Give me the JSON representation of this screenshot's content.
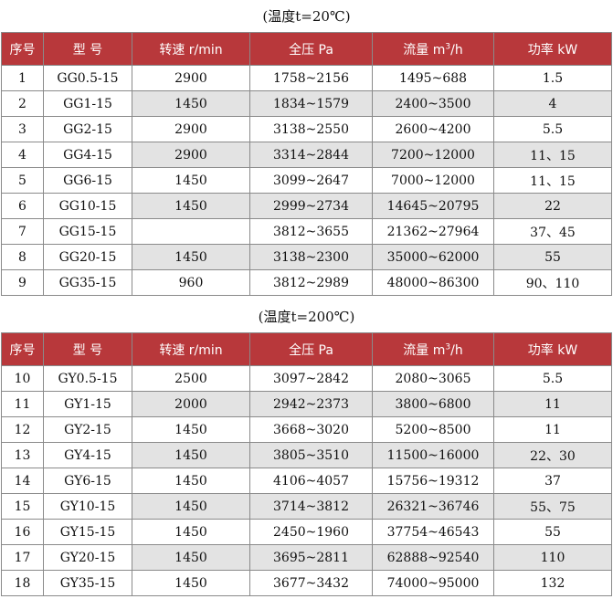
{
  "table1": {
    "title": "(温度t=20℃)",
    "headers": [
      "序号",
      "型 号",
      "转速 r/min",
      "全压 Pa",
      "流量 m",
      "/h",
      "功率 kW"
    ],
    "rows": [
      [
        "1",
        "GG0.5-15",
        "2900",
        "1758~2156",
        "1495~688",
        "1.5"
      ],
      [
        "2",
        "GG1-15",
        "1450",
        "1834~1579",
        "2400~3500",
        "4"
      ],
      [
        "3",
        "GG2-15",
        "2900",
        "3138~2550",
        "2600~4200",
        "5.5"
      ],
      [
        "4",
        "GG4-15",
        "2900",
        "3314~2844",
        "7200~12000",
        "11、15"
      ],
      [
        "5",
        "GG6-15",
        "1450",
        "3099~2647",
        "7000~12000",
        "11、15"
      ],
      [
        "6",
        "GG10-15",
        "1450",
        "2999~2734",
        "14645~20795",
        "22"
      ],
      [
        "7",
        "GG15-15",
        "",
        "3812~3655",
        "21362~27964",
        "37、45"
      ],
      [
        "8",
        "GG20-15",
        "1450",
        "3138~2300",
        "35000~62000",
        "55"
      ],
      [
        "9",
        "GG35-15",
        "960",
        "3812~2989",
        "48000~86300",
        "90、110"
      ]
    ]
  },
  "table2": {
    "title": "(温度t=200℃)",
    "headers": [
      "序号",
      "型 号",
      "转速 r/min",
      "全压 Pa",
      "流量 m",
      "/h",
      "功率 kW"
    ],
    "rows": [
      [
        "10",
        "GY0.5-15",
        "2500",
        "3097~2842",
        "2080~3065",
        "5.5"
      ],
      [
        "11",
        "GY1-15",
        "2000",
        "2942~2373",
        "3800~6800",
        "11"
      ],
      [
        "12",
        "GY2-15",
        "1450",
        "3668~3020",
        "5200~8500",
        "11"
      ],
      [
        "13",
        "GY4-15",
        "1450",
        "3805~3510",
        "11500~16000",
        "22、30"
      ],
      [
        "14",
        "GY6-15",
        "1450",
        "4106~4057",
        "15756~19312",
        "37"
      ],
      [
        "15",
        "GY10-15",
        "1450",
        "3714~3812",
        "26321~36746",
        "55、75"
      ],
      [
        "16",
        "GY15-15",
        "1450",
        "2450~1960",
        "37754~46543",
        "55"
      ],
      [
        "17",
        "GY20-15",
        "1450",
        "3695~2811",
        "62888~92540",
        "110"
      ],
      [
        "18",
        "GY35-15",
        "1450",
        "3677~3432",
        "74000~95000",
        "132"
      ]
    ]
  },
  "flow_unit_superscript": "3",
  "colors": {
    "header_bg": "#b8383b",
    "header_text": "#ffffff",
    "shade": "#e3e3e3",
    "border": "#8a8a8a"
  }
}
